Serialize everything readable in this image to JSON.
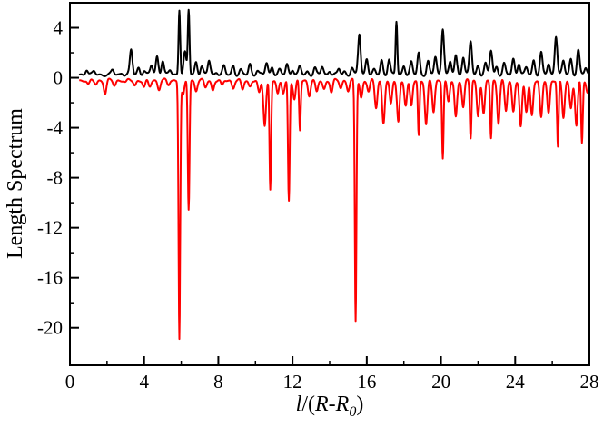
{
  "chart_data": {
    "type": "line",
    "title": "",
    "xlabel_parts": {
      "italic_l": "l",
      "slash_open": "/(",
      "R": "R",
      "dash": "-",
      "R2": "R",
      "sub": "0",
      "close": ")"
    },
    "ylabel": "Length Spectrum",
    "xlim": [
      0,
      28
    ],
    "ylim": [
      -23,
      6
    ],
    "x_ticks": [
      0,
      4,
      8,
      12,
      16,
      20,
      24,
      28
    ],
    "x_tick_labels": [
      "0",
      "4",
      "8",
      "12",
      "16",
      "20",
      "24",
      "28"
    ],
    "y_ticks": [
      4,
      0,
      -4,
      -8,
      -12,
      -16,
      -20
    ],
    "y_tick_labels": [
      "4",
      "0",
      "-4",
      "-8",
      "-12",
      "-16",
      "-20"
    ],
    "grid": false,
    "series": [
      {
        "color": "#000000",
        "baseline": 0.25,
        "peaks": [
          [
            0.9,
            0.7
          ],
          [
            1.3,
            0.5
          ],
          [
            2.3,
            0.6
          ],
          [
            2.8,
            0.4
          ],
          [
            3.3,
            2.2
          ],
          [
            3.7,
            0.8
          ],
          [
            4.0,
            0.6
          ],
          [
            4.4,
            1.0
          ],
          [
            4.7,
            1.7
          ],
          [
            5.0,
            1.4
          ],
          [
            5.4,
            0.6
          ],
          [
            5.9,
            5.5
          ],
          [
            6.2,
            2.0
          ],
          [
            6.4,
            5.4
          ],
          [
            6.8,
            1.3
          ],
          [
            7.1,
            0.9
          ],
          [
            7.5,
            1.4
          ],
          [
            7.9,
            0.5
          ],
          [
            8.3,
            0.9
          ],
          [
            8.8,
            1.0
          ],
          [
            9.2,
            0.6
          ],
          [
            9.7,
            1.1
          ],
          [
            10.1,
            0.6
          ],
          [
            10.6,
            1.2
          ],
          [
            10.9,
            0.9
          ],
          [
            11.3,
            0.6
          ],
          [
            11.7,
            1.1
          ],
          [
            12.0,
            0.7
          ],
          [
            12.4,
            0.9
          ],
          [
            12.8,
            0.5
          ],
          [
            13.2,
            0.8
          ],
          [
            13.6,
            0.9
          ],
          [
            14.0,
            0.6
          ],
          [
            14.5,
            0.7
          ],
          [
            14.8,
            0.5
          ],
          [
            15.2,
            0.8
          ],
          [
            15.6,
            3.5
          ],
          [
            16.0,
            1.6
          ],
          [
            16.4,
            0.6
          ],
          [
            16.8,
            1.4
          ],
          [
            17.2,
            1.5
          ],
          [
            17.6,
            4.5
          ],
          [
            18.0,
            1.0
          ],
          [
            18.4,
            1.2
          ],
          [
            18.8,
            2.0
          ],
          [
            19.3,
            1.3
          ],
          [
            19.7,
            1.7
          ],
          [
            20.1,
            4.0
          ],
          [
            20.5,
            1.2
          ],
          [
            20.8,
            1.8
          ],
          [
            21.2,
            1.7
          ],
          [
            21.6,
            2.9
          ],
          [
            22.0,
            1.0
          ],
          [
            22.4,
            1.1
          ],
          [
            22.7,
            2.2
          ],
          [
            23.0,
            0.9
          ],
          [
            23.4,
            1.1
          ],
          [
            23.9,
            1.5
          ],
          [
            24.2,
            1.2
          ],
          [
            24.6,
            0.8
          ],
          [
            25.0,
            1.4
          ],
          [
            25.4,
            2.0
          ],
          [
            25.8,
            1.1
          ],
          [
            26.2,
            3.4
          ],
          [
            26.6,
            1.3
          ],
          [
            27.0,
            1.5
          ],
          [
            27.4,
            2.2
          ],
          [
            27.8,
            0.8
          ]
        ]
      },
      {
        "color": "#ff0000",
        "baseline": -0.2,
        "peaks": [
          [
            1.0,
            -0.6
          ],
          [
            1.4,
            -0.5
          ],
          [
            1.9,
            -1.3
          ],
          [
            2.4,
            -0.6
          ],
          [
            3.0,
            -0.4
          ],
          [
            3.5,
            -0.6
          ],
          [
            4.0,
            -0.8
          ],
          [
            4.3,
            -0.7
          ],
          [
            4.8,
            -0.9
          ],
          [
            5.3,
            -0.6
          ],
          [
            5.9,
            -20.8
          ],
          [
            6.1,
            -1.5
          ],
          [
            6.4,
            -10.5
          ],
          [
            6.8,
            -1.0
          ],
          [
            7.3,
            -0.8
          ],
          [
            7.7,
            -1.0
          ],
          [
            8.2,
            -0.7
          ],
          [
            8.8,
            -0.8
          ],
          [
            9.3,
            -1.0
          ],
          [
            9.7,
            -0.7
          ],
          [
            10.2,
            -1.3
          ],
          [
            10.5,
            -3.8
          ],
          [
            10.8,
            -8.9
          ],
          [
            11.2,
            -1.4
          ],
          [
            11.5,
            -1.2
          ],
          [
            11.8,
            -9.8
          ],
          [
            12.1,
            -1.8
          ],
          [
            12.4,
            -4.2
          ],
          [
            12.9,
            -1.4
          ],
          [
            13.3,
            -1.2
          ],
          [
            13.7,
            -0.9
          ],
          [
            14.1,
            -1.2
          ],
          [
            14.6,
            -0.8
          ],
          [
            15.0,
            -1.0
          ],
          [
            15.4,
            -19.5
          ],
          [
            15.7,
            -1.6
          ],
          [
            16.1,
            -1.1
          ],
          [
            16.5,
            -2.4
          ],
          [
            16.9,
            -3.6
          ],
          [
            17.3,
            -2.2
          ],
          [
            17.7,
            -3.5
          ],
          [
            18.1,
            -2.2
          ],
          [
            18.4,
            -2.3
          ],
          [
            18.8,
            -4.6
          ],
          [
            19.2,
            -3.8
          ],
          [
            19.6,
            -2.7
          ],
          [
            20.1,
            -6.4
          ],
          [
            20.4,
            -2.0
          ],
          [
            20.8,
            -3.1
          ],
          [
            21.2,
            -2.4
          ],
          [
            21.6,
            -4.8
          ],
          [
            22.0,
            -3.0
          ],
          [
            22.3,
            -3.0
          ],
          [
            22.7,
            -4.8
          ],
          [
            23.1,
            -3.6
          ],
          [
            23.5,
            -2.7
          ],
          [
            23.9,
            -2.7
          ],
          [
            24.3,
            -4.0
          ],
          [
            24.6,
            -2.7
          ],
          [
            24.9,
            -3.0
          ],
          [
            25.4,
            -3.3
          ],
          [
            25.8,
            -2.8
          ],
          [
            26.3,
            -5.6
          ],
          [
            26.6,
            -3.2
          ],
          [
            27.0,
            -2.4
          ],
          [
            27.3,
            -3.9
          ],
          [
            27.6,
            -5.2
          ],
          [
            27.9,
            -1.2
          ]
        ]
      }
    ]
  }
}
